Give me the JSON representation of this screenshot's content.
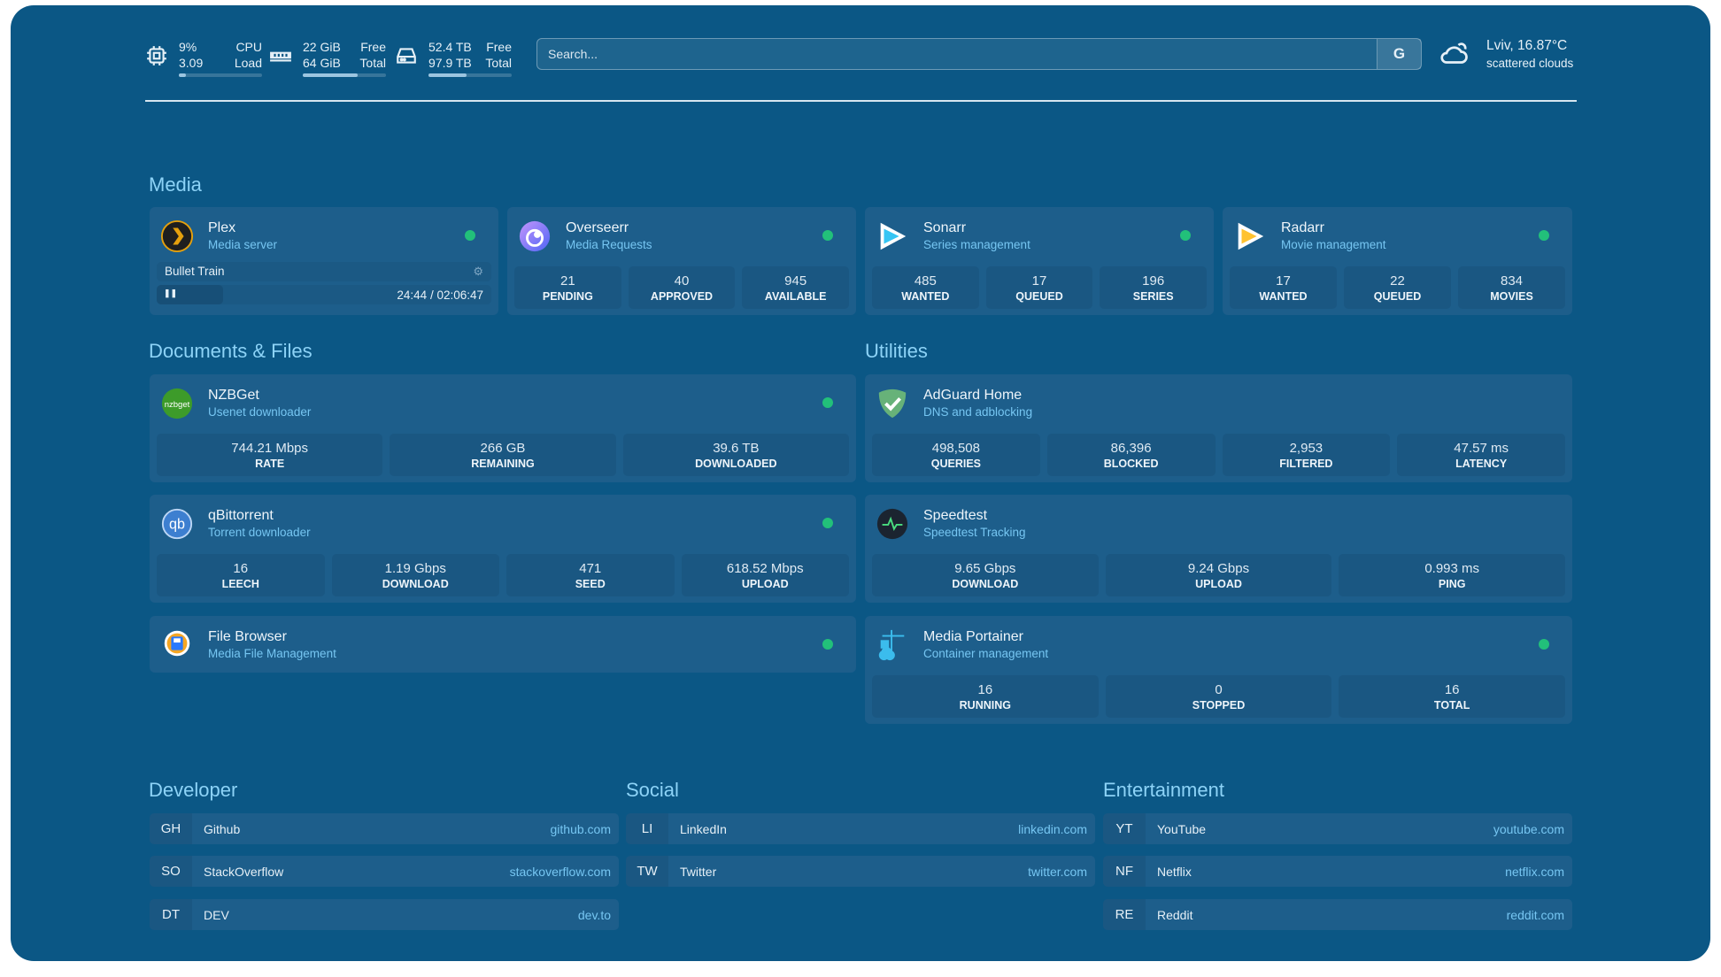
{
  "colors": {
    "background": "#0b5785",
    "card": "#1d5e8b",
    "accent": "#76c6f2",
    "status_ok": "#22c07a"
  },
  "resources": {
    "cpu": {
      "icon": "cpu-icon",
      "value1": "9%",
      "label1": "CPU",
      "value2": "3.09",
      "label2": "Load",
      "percent": 9
    },
    "memory": {
      "icon": "memory-icon",
      "value1": "22 GiB",
      "label1": "Free",
      "value2": "64 GiB",
      "label2": "Total",
      "percent": 66
    },
    "disk": {
      "icon": "disk-icon",
      "value1": "52.4 TB",
      "label1": "Free",
      "value2": "97.9 TB",
      "label2": "Total",
      "percent": 46
    }
  },
  "search": {
    "placeholder": "Search...",
    "provider_label": "G"
  },
  "weather": {
    "icon": "cloud-sun-icon",
    "location_temp": "Lviv, 16.87°C",
    "condition": "scattered clouds"
  },
  "sections": {
    "media": "Media",
    "documents": "Documents & Files",
    "utilities": "Utilities",
    "developer": "Developer",
    "social": "Social",
    "entertainment": "Entertainment"
  },
  "services": [
    {
      "id": "plex",
      "title": "Plex",
      "sub": "Media server",
      "icon": "plex-icon",
      "status": "online",
      "now_playing": {
        "title": "Bullet Train",
        "time": "24:44 / 02:06:47",
        "state": "paused"
      }
    },
    {
      "id": "overseerr",
      "title": "Overseerr",
      "sub": "Media Requests",
      "icon": "overseerr-icon",
      "status": "online",
      "stats": [
        {
          "v": "21",
          "k": "PENDING"
        },
        {
          "v": "40",
          "k": "APPROVED"
        },
        {
          "v": "945",
          "k": "AVAILABLE"
        }
      ]
    },
    {
      "id": "sonarr",
      "title": "Sonarr",
      "sub": "Series management",
      "icon": "sonarr-icon",
      "status": "online",
      "stats": [
        {
          "v": "485",
          "k": "WANTED"
        },
        {
          "v": "17",
          "k": "QUEUED"
        },
        {
          "v": "196",
          "k": "SERIES"
        }
      ]
    },
    {
      "id": "radarr",
      "title": "Radarr",
      "sub": "Movie management",
      "icon": "radarr-icon",
      "status": "online",
      "stats": [
        {
          "v": "17",
          "k": "WANTED"
        },
        {
          "v": "22",
          "k": "QUEUED"
        },
        {
          "v": "834",
          "k": "MOVIES"
        }
      ]
    },
    {
      "id": "nzbget",
      "title": "NZBGet",
      "sub": "Usenet downloader",
      "icon": "nzbget-icon",
      "icon_text": "nzbget",
      "status": "online",
      "stats": [
        {
          "v": "744.21 Mbps",
          "k": "RATE"
        },
        {
          "v": "266 GB",
          "k": "REMAINING"
        },
        {
          "v": "39.6 TB",
          "k": "DOWNLOADED"
        }
      ]
    },
    {
      "id": "qbittorrent",
      "title": "qBittorrent",
      "sub": "Torrent downloader",
      "icon": "qbittorrent-icon",
      "icon_text": "qb",
      "status": "online",
      "stats": [
        {
          "v": "16",
          "k": "LEECH"
        },
        {
          "v": "1.19 Gbps",
          "k": "DOWNLOAD"
        },
        {
          "v": "471",
          "k": "SEED"
        },
        {
          "v": "618.52 Mbps",
          "k": "UPLOAD"
        }
      ]
    },
    {
      "id": "filebrowser",
      "title": "File Browser",
      "sub": "Media File Management",
      "icon": "file-browser-icon",
      "status": "online"
    },
    {
      "id": "adguard",
      "title": "AdGuard Home",
      "sub": "DNS and adblocking",
      "icon": "adguard-shield-icon",
      "stats": [
        {
          "v": "498,508",
          "k": "QUERIES"
        },
        {
          "v": "86,396",
          "k": "BLOCKED"
        },
        {
          "v": "2,953",
          "k": "FILTERED"
        },
        {
          "v": "47.57 ms",
          "k": "LATENCY"
        }
      ]
    },
    {
      "id": "speedtest",
      "title": "Speedtest",
      "sub": "Speedtest Tracking",
      "icon": "speedtest-icon",
      "stats": [
        {
          "v": "9.65 Gbps",
          "k": "DOWNLOAD"
        },
        {
          "v": "9.24 Gbps",
          "k": "UPLOAD"
        },
        {
          "v": "0.993 ms",
          "k": "PING"
        }
      ]
    },
    {
      "id": "portainer",
      "title": "Media Portainer",
      "sub": "Container management",
      "icon": "portainer-icon",
      "status": "online",
      "stats": [
        {
          "v": "16",
          "k": "RUNNING"
        },
        {
          "v": "0",
          "k": "STOPPED"
        },
        {
          "v": "16",
          "k": "TOTAL"
        }
      ]
    }
  ],
  "bookmarks": {
    "developer": [
      {
        "abbr": "GH",
        "name": "Github",
        "url": "github.com"
      },
      {
        "abbr": "SO",
        "name": "StackOverflow",
        "url": "stackoverflow.com"
      },
      {
        "abbr": "DT",
        "name": "DEV",
        "url": "dev.to"
      }
    ],
    "social": [
      {
        "abbr": "LI",
        "name": "LinkedIn",
        "url": "linkedin.com"
      },
      {
        "abbr": "TW",
        "name": "Twitter",
        "url": "twitter.com"
      }
    ],
    "entertainment": [
      {
        "abbr": "YT",
        "name": "YouTube",
        "url": "youtube.com"
      },
      {
        "abbr": "NF",
        "name": "Netflix",
        "url": "netflix.com"
      },
      {
        "abbr": "RE",
        "name": "Reddit",
        "url": "reddit.com"
      }
    ]
  }
}
